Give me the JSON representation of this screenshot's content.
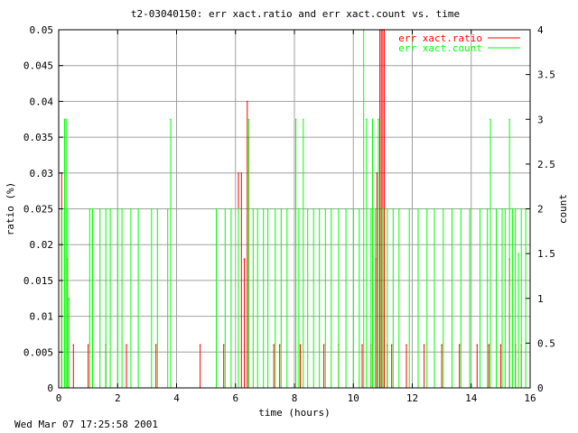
{
  "chart_data": {
    "type": "line",
    "title": "t2-03040150: err xact.ratio and err xact.count vs. time",
    "xlabel": "time (hours)",
    "ylabel": "ratio (%)",
    "y2label": "count",
    "xlim": [
      0,
      16
    ],
    "ylim": [
      0,
      0.05
    ],
    "y2lim": [
      0,
      4
    ],
    "x_ticks": [
      "0",
      "2",
      "4",
      "6",
      "8",
      "10",
      "12",
      "14",
      "16"
    ],
    "y_ticks": [
      "0",
      "0.005",
      "0.01",
      "0.015",
      "0.02",
      "0.025",
      "0.03",
      "0.035",
      "0.04",
      "0.045",
      "0.05"
    ],
    "y2_ticks": [
      "0",
      "0.5",
      "1",
      "1.5",
      "2",
      "2.5",
      "3",
      "3.5",
      "4"
    ],
    "grid": true,
    "legend_position": "top-right",
    "series": [
      {
        "name": "err xact.ratio",
        "axis": "left",
        "color": "#ff0000",
        "points": [
          [
            0.1,
            0.03
          ],
          [
            0.2,
            0.02
          ],
          [
            0.3,
            0.018
          ],
          [
            0.5,
            0.006
          ],
          [
            1.0,
            0.006
          ],
          [
            1.6,
            0.006
          ],
          [
            2.3,
            0.006
          ],
          [
            3.3,
            0.006
          ],
          [
            4.8,
            0.006
          ],
          [
            5.6,
            0.006
          ],
          [
            6.1,
            0.03
          ],
          [
            6.2,
            0.03
          ],
          [
            6.3,
            0.018
          ],
          [
            6.4,
            0.04
          ],
          [
            6.45,
            0.035
          ],
          [
            7.3,
            0.006
          ],
          [
            7.5,
            0.006
          ],
          [
            8.2,
            0.006
          ],
          [
            9.0,
            0.006
          ],
          [
            9.5,
            0.006
          ],
          [
            10.3,
            0.006
          ],
          [
            10.6,
            0.006
          ],
          [
            10.75,
            0.018
          ],
          [
            10.8,
            0.03
          ],
          [
            10.9,
            0.05
          ],
          [
            10.95,
            0.05
          ],
          [
            11.0,
            0.05
          ],
          [
            11.05,
            0.05
          ],
          [
            11.15,
            0.006
          ],
          [
            11.3,
            0.006
          ],
          [
            11.8,
            0.006
          ],
          [
            12.4,
            0.006
          ],
          [
            13.0,
            0.006
          ],
          [
            13.6,
            0.006
          ],
          [
            14.2,
            0.006
          ],
          [
            14.6,
            0.006
          ],
          [
            15.0,
            0.006
          ],
          [
            15.3,
            0.018
          ],
          [
            15.5,
            0.006
          ],
          [
            15.7,
            0.006
          ]
        ]
      },
      {
        "name": "err xact.count",
        "axis": "right",
        "color": "#00ff00",
        "points": [
          [
            0.1,
            2
          ],
          [
            0.2,
            3
          ],
          [
            0.25,
            3
          ],
          [
            0.3,
            2
          ],
          [
            0.35,
            1
          ],
          [
            1.05,
            2
          ],
          [
            1.15,
            2
          ],
          [
            1.4,
            2
          ],
          [
            1.6,
            2
          ],
          [
            1.75,
            2
          ],
          [
            2.0,
            2
          ],
          [
            2.15,
            2
          ],
          [
            2.45,
            2
          ],
          [
            2.7,
            2
          ],
          [
            3.15,
            2
          ],
          [
            3.35,
            2
          ],
          [
            3.7,
            2
          ],
          [
            3.8,
            3
          ],
          [
            5.35,
            2
          ],
          [
            5.65,
            2
          ],
          [
            5.85,
            2
          ],
          [
            6.1,
            2
          ],
          [
            6.45,
            3
          ],
          [
            6.6,
            2
          ],
          [
            6.75,
            2
          ],
          [
            6.95,
            2
          ],
          [
            7.1,
            2
          ],
          [
            7.35,
            2
          ],
          [
            7.55,
            2
          ],
          [
            7.75,
            2
          ],
          [
            8.05,
            3
          ],
          [
            8.15,
            2
          ],
          [
            8.3,
            3
          ],
          [
            8.45,
            2
          ],
          [
            8.65,
            2
          ],
          [
            8.85,
            2
          ],
          [
            9.05,
            2
          ],
          [
            9.25,
            2
          ],
          [
            9.5,
            2
          ],
          [
            9.75,
            2
          ],
          [
            10.0,
            2
          ],
          [
            10.2,
            2
          ],
          [
            10.35,
            4
          ],
          [
            10.45,
            3
          ],
          [
            10.6,
            2
          ],
          [
            10.65,
            3
          ],
          [
            10.75,
            2
          ],
          [
            10.85,
            3
          ],
          [
            11.0,
            2
          ],
          [
            11.15,
            2
          ],
          [
            11.35,
            2
          ],
          [
            11.55,
            2
          ],
          [
            11.9,
            2
          ],
          [
            12.2,
            2
          ],
          [
            12.5,
            2
          ],
          [
            12.75,
            2
          ],
          [
            13.05,
            2
          ],
          [
            13.35,
            2
          ],
          [
            13.65,
            2
          ],
          [
            13.95,
            2
          ],
          [
            14.3,
            2
          ],
          [
            14.55,
            2
          ],
          [
            14.65,
            3
          ],
          [
            14.85,
            2
          ],
          [
            15.05,
            2
          ],
          [
            15.15,
            2
          ],
          [
            15.3,
            3
          ],
          [
            15.4,
            2
          ],
          [
            15.5,
            2
          ],
          [
            15.6,
            1.5
          ],
          [
            15.7,
            2
          ],
          [
            15.85,
            2
          ]
        ]
      }
    ]
  },
  "footer_timestamp": "Wed Mar 07 17:25:58 2001"
}
